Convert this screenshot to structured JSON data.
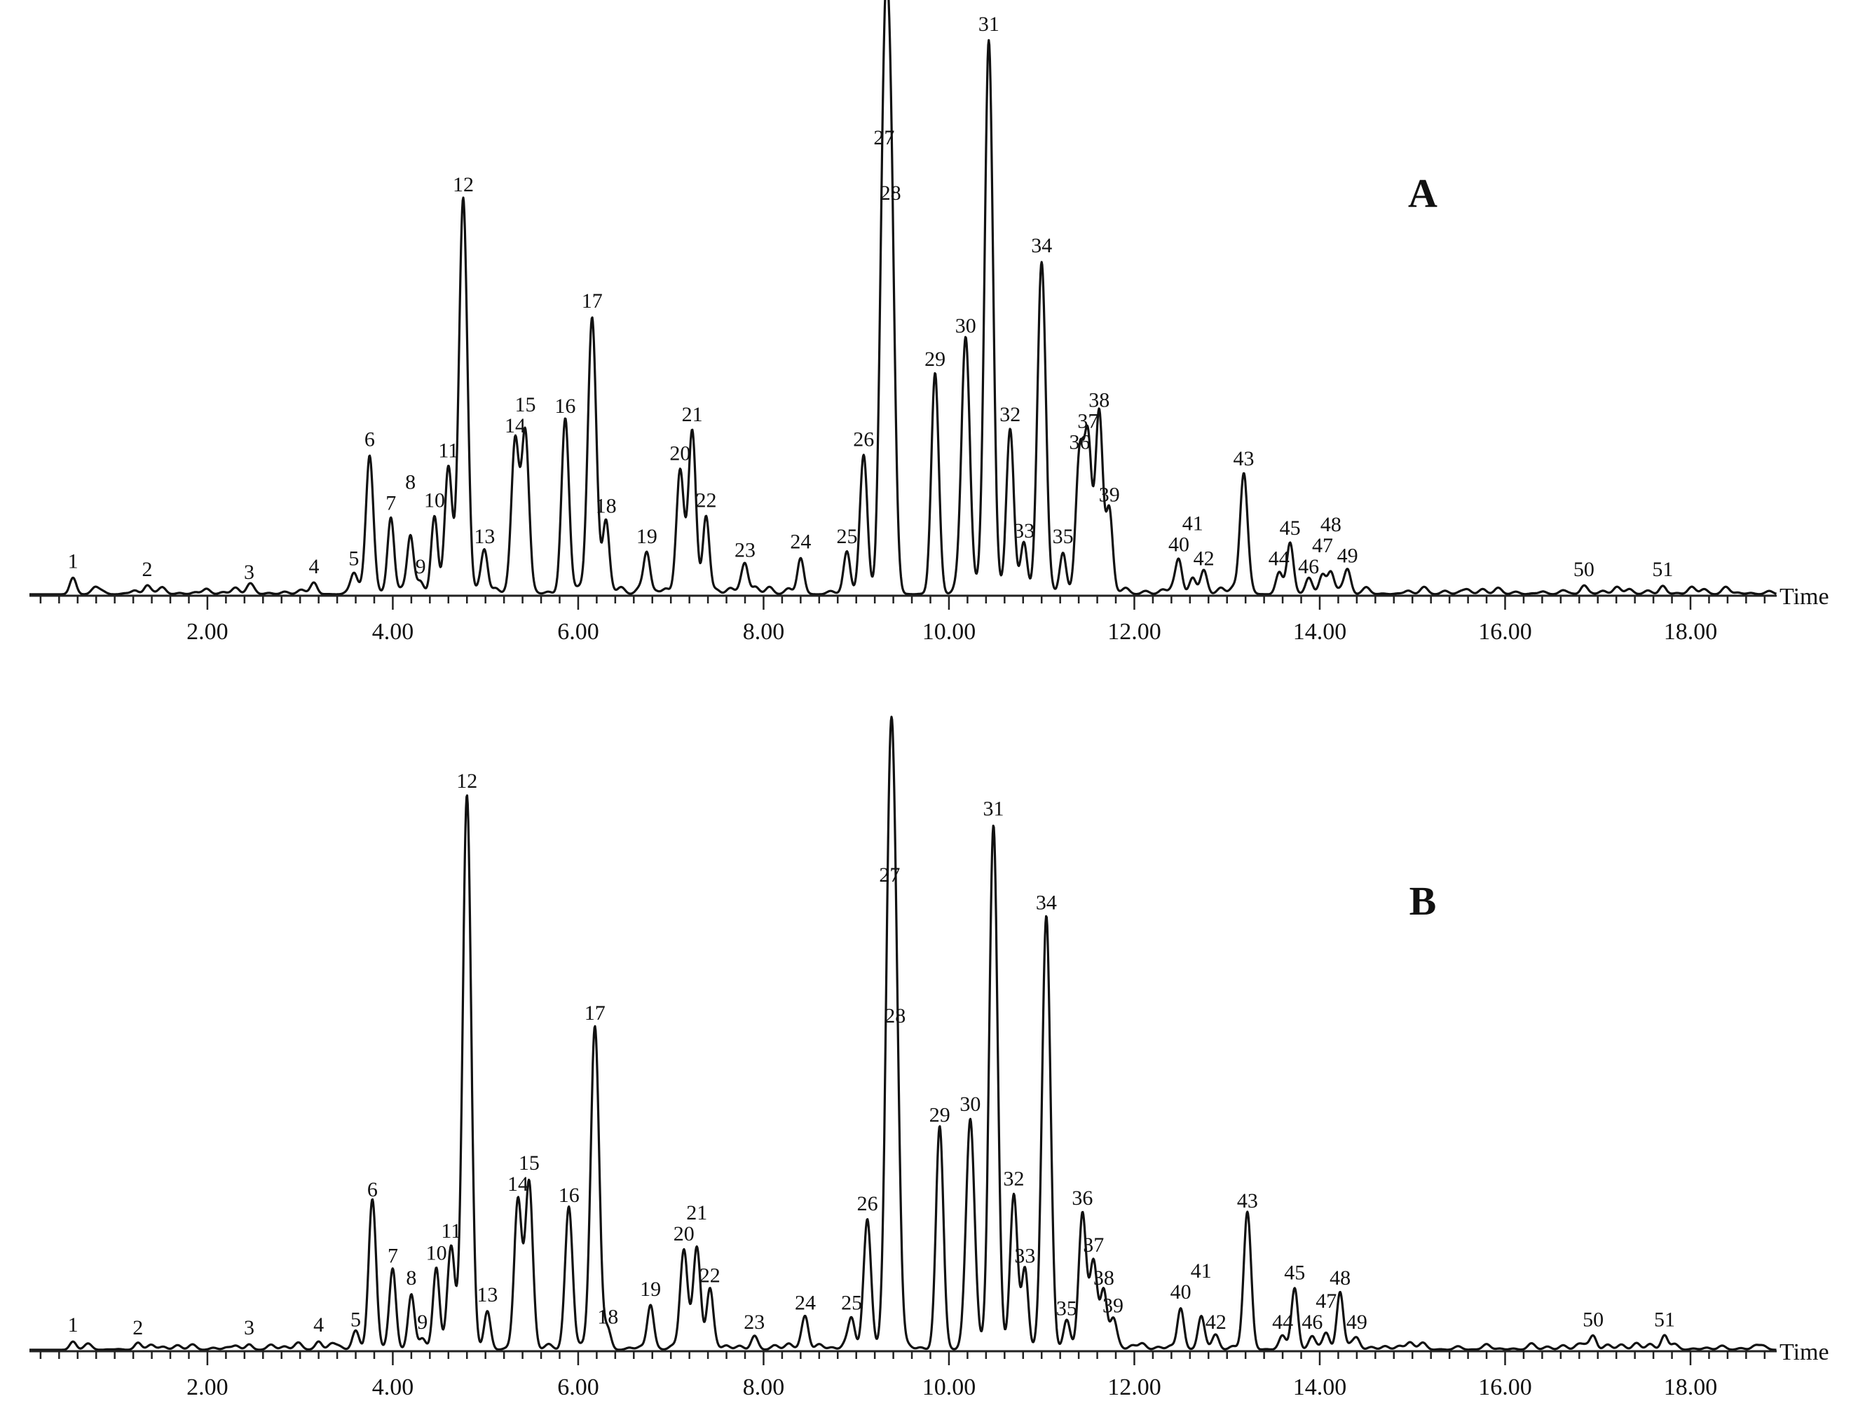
{
  "chart_data": [
    {
      "type": "line",
      "panel": "A",
      "xlabel": "Time",
      "ylabel": "",
      "xlim": [
        0,
        19
      ],
      "ylim": [
        0,
        100
      ],
      "x_tick_labels": [
        "2.00",
        "4.00",
        "6.00",
        "8.00",
        "10.00",
        "12.00",
        "14.00",
        "16.00",
        "18.00"
      ],
      "peaks": [
        {
          "label": "1",
          "x": 0.55,
          "y": 3
        },
        {
          "label": "2",
          "x": 1.35,
          "y": 1.5
        },
        {
          "label": "3",
          "x": 2.45,
          "y": 1
        },
        {
          "label": "4",
          "x": 3.15,
          "y": 2
        },
        {
          "label": "5",
          "x": 3.58,
          "y": 3.5
        },
        {
          "label": "6",
          "x": 3.75,
          "y": 25
        },
        {
          "label": "7",
          "x": 3.98,
          "y": 13.5
        },
        {
          "label": "8",
          "x": 4.19,
          "y": 10.5
        },
        {
          "label": "9",
          "x": 4.3,
          "y": 2
        },
        {
          "label": "10",
          "x": 4.45,
          "y": 14
        },
        {
          "label": "11",
          "x": 4.6,
          "y": 23
        },
        {
          "label": "12",
          "x": 4.76,
          "y": 71
        },
        {
          "label": "13",
          "x": 4.99,
          "y": 7.5
        },
        {
          "label": "14",
          "x": 5.32,
          "y": 27.5
        },
        {
          "label": "15",
          "x": 5.43,
          "y": 28.5
        },
        {
          "label": "16",
          "x": 5.86,
          "y": 31
        },
        {
          "label": "17",
          "x": 6.15,
          "y": 50
        },
        {
          "label": "18",
          "x": 6.3,
          "y": 13
        },
        {
          "label": "19",
          "x": 6.74,
          "y": 7.5
        },
        {
          "label": "20",
          "x": 7.1,
          "y": 22.5
        },
        {
          "label": "21",
          "x": 7.23,
          "y": 29.5
        },
        {
          "label": "22",
          "x": 7.38,
          "y": 14
        },
        {
          "label": "23",
          "x": 7.8,
          "y": 5
        },
        {
          "label": "24",
          "x": 8.4,
          "y": 6.5
        },
        {
          "label": "25",
          "x": 8.9,
          "y": 7.5
        },
        {
          "label": "26",
          "x": 9.08,
          "y": 25
        },
        {
          "label": "27",
          "x": 9.3,
          "y": 79.5
        },
        {
          "label": "28",
          "x": 9.37,
          "y": 69.5
        },
        {
          "label": "29",
          "x": 9.85,
          "y": 39.5
        },
        {
          "label": "30",
          "x": 10.18,
          "y": 45.5
        },
        {
          "label": "31",
          "x": 10.43,
          "y": 100
        },
        {
          "label": "32",
          "x": 10.66,
          "y": 29.5
        },
        {
          "label": "33",
          "x": 10.81,
          "y": 8.5
        },
        {
          "label": "34",
          "x": 11.0,
          "y": 60
        },
        {
          "label": "35",
          "x": 11.23,
          "y": 7.5
        },
        {
          "label": "36",
          "x": 11.41,
          "y": 24.5
        },
        {
          "label": "37",
          "x": 11.5,
          "y": 27.5
        },
        {
          "label": "38",
          "x": 11.62,
          "y": 32
        },
        {
          "label": "39",
          "x": 11.73,
          "y": 15
        },
        {
          "label": "40",
          "x": 12.48,
          "y": 6
        },
        {
          "label": "41",
          "x": 12.63,
          "y": 2.5
        },
        {
          "label": "42",
          "x": 12.75,
          "y": 3.5
        },
        {
          "label": "43",
          "x": 13.18,
          "y": 21.5
        },
        {
          "label": "44",
          "x": 13.56,
          "y": 3.5
        },
        {
          "label": "45",
          "x": 13.68,
          "y": 9
        },
        {
          "label": "46",
          "x": 13.88,
          "y": 2
        },
        {
          "label": "47",
          "x": 14.03,
          "y": 3
        },
        {
          "label": "48",
          "x": 14.12,
          "y": 4
        },
        {
          "label": "49",
          "x": 14.3,
          "y": 4
        },
        {
          "label": "50",
          "x": 16.85,
          "y": 1.5
        },
        {
          "label": "51",
          "x": 17.7,
          "y": 1.5
        }
      ]
    },
    {
      "type": "line",
      "panel": "B",
      "xlabel": "Time",
      "ylabel": "",
      "xlim": [
        0,
        19
      ],
      "ylim": [
        0,
        100
      ],
      "x_tick_labels": [
        "2.00",
        "4.00",
        "6.00",
        "8.00",
        "10.00",
        "12.00",
        "14.00",
        "16.00",
        "18.00"
      ],
      "peaks": [
        {
          "label": "1",
          "x": 0.55,
          "y": 1.5
        },
        {
          "label": "2",
          "x": 1.25,
          "y": 1
        },
        {
          "label": "3",
          "x": 2.45,
          "y": 1
        },
        {
          "label": "4",
          "x": 3.2,
          "y": 1.5
        },
        {
          "label": "5",
          "x": 3.6,
          "y": 2.5
        },
        {
          "label": "6",
          "x": 3.78,
          "y": 26
        },
        {
          "label": "7",
          "x": 4.0,
          "y": 14
        },
        {
          "label": "8",
          "x": 4.2,
          "y": 10
        },
        {
          "label": "9",
          "x": 4.32,
          "y": 2
        },
        {
          "label": "10",
          "x": 4.47,
          "y": 14.5
        },
        {
          "label": "11",
          "x": 4.63,
          "y": 18.5
        },
        {
          "label": "12",
          "x": 4.8,
          "y": 100
        },
        {
          "label": "13",
          "x": 5.02,
          "y": 7
        },
        {
          "label": "14",
          "x": 5.35,
          "y": 27
        },
        {
          "label": "15",
          "x": 5.47,
          "y": 30
        },
        {
          "label": "16",
          "x": 5.9,
          "y": 25
        },
        {
          "label": "17",
          "x": 6.18,
          "y": 58
        },
        {
          "label": "18",
          "x": 6.32,
          "y": 3
        },
        {
          "label": "19",
          "x": 6.78,
          "y": 8
        },
        {
          "label": "20",
          "x": 7.14,
          "y": 18
        },
        {
          "label": "21",
          "x": 7.28,
          "y": 18.5
        },
        {
          "label": "22",
          "x": 7.42,
          "y": 10.5
        },
        {
          "label": "23",
          "x": 7.9,
          "y": 2
        },
        {
          "label": "24",
          "x": 8.45,
          "y": 5.5
        },
        {
          "label": "25",
          "x": 8.95,
          "y": 5.5
        },
        {
          "label": "26",
          "x": 9.12,
          "y": 23.5
        },
        {
          "label": "27",
          "x": 9.36,
          "y": 83
        },
        {
          "label": "28",
          "x": 9.42,
          "y": 57.5
        },
        {
          "label": "29",
          "x": 9.9,
          "y": 39.5
        },
        {
          "label": "30",
          "x": 10.23,
          "y": 41.5
        },
        {
          "label": "31",
          "x": 10.48,
          "y": 95
        },
        {
          "label": "32",
          "x": 10.7,
          "y": 28
        },
        {
          "label": "33",
          "x": 10.82,
          "y": 14
        },
        {
          "label": "34",
          "x": 11.05,
          "y": 78
        },
        {
          "label": "35",
          "x": 11.27,
          "y": 4.5
        },
        {
          "label": "36",
          "x": 11.44,
          "y": 24.5
        },
        {
          "label": "37",
          "x": 11.56,
          "y": 16
        },
        {
          "label": "38",
          "x": 11.67,
          "y": 10
        },
        {
          "label": "39",
          "x": 11.77,
          "y": 5
        },
        {
          "label": "40",
          "x": 12.5,
          "y": 7.5
        },
        {
          "label": "41",
          "x": 12.72,
          "y": 5.5
        },
        {
          "label": "42",
          "x": 12.88,
          "y": 2
        },
        {
          "label": "43",
          "x": 13.22,
          "y": 24
        },
        {
          "label": "44",
          "x": 13.6,
          "y": 2
        },
        {
          "label": "45",
          "x": 13.73,
          "y": 11
        },
        {
          "label": "46",
          "x": 13.92,
          "y": 2
        },
        {
          "label": "47",
          "x": 14.07,
          "y": 3
        },
        {
          "label": "48",
          "x": 14.22,
          "y": 10
        },
        {
          "label": "49",
          "x": 14.4,
          "y": 2
        },
        {
          "label": "50",
          "x": 16.95,
          "y": 2.5
        },
        {
          "label": "51",
          "x": 17.72,
          "y": 2.5
        }
      ]
    }
  ]
}
